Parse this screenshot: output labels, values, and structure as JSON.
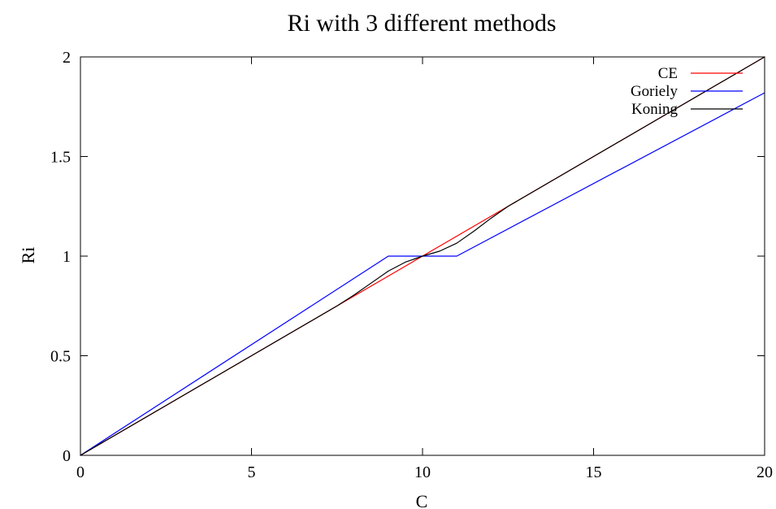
{
  "chart_data": {
    "type": "line",
    "title": "Ri with 3 different methods",
    "xlabel": "C",
    "ylabel": "Ri",
    "xlim": [
      0,
      20
    ],
    "ylim": [
      0,
      2
    ],
    "x_ticks": [
      0,
      5,
      10,
      15,
      20
    ],
    "y_ticks": [
      0,
      0.5,
      1,
      1.5,
      2
    ],
    "x_tick_labels": [
      "0",
      "5",
      "10",
      "15",
      "20"
    ],
    "y_tick_labels": [
      "0",
      "0.5",
      "1",
      "1.5",
      "2"
    ],
    "grid": false,
    "legend_position": "top-right",
    "series": [
      {
        "name": "CE",
        "color": "#ff0000",
        "x": [
          0,
          20
        ],
        "y": [
          0,
          2
        ]
      },
      {
        "name": "Goriely",
        "color": "#0000ff",
        "x": [
          0,
          9,
          11,
          20
        ],
        "y": [
          0,
          1,
          1,
          1.82
        ]
      },
      {
        "name": "Koning",
        "color": "#000000",
        "x": [
          0,
          7.5,
          8.0,
          8.5,
          9.0,
          9.5,
          10.0,
          10.5,
          11.0,
          11.5,
          12.0,
          12.5,
          20
        ],
        "y": [
          0,
          0.75,
          0.805,
          0.865,
          0.925,
          0.97,
          1.0,
          1.025,
          1.065,
          1.125,
          1.19,
          1.25,
          2
        ]
      }
    ]
  }
}
